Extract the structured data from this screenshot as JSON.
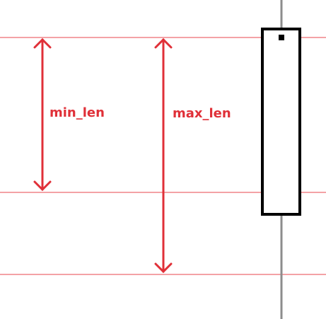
{
  "labels": {
    "min_len": "min_len",
    "max_len": "max_len"
  },
  "colors": {
    "guide_line": "#e8464d",
    "arrow": "#e03038",
    "label": "#e03038",
    "box_stroke": "#000000",
    "rod": "#8c8c8c",
    "background": "#ffffff"
  }
}
